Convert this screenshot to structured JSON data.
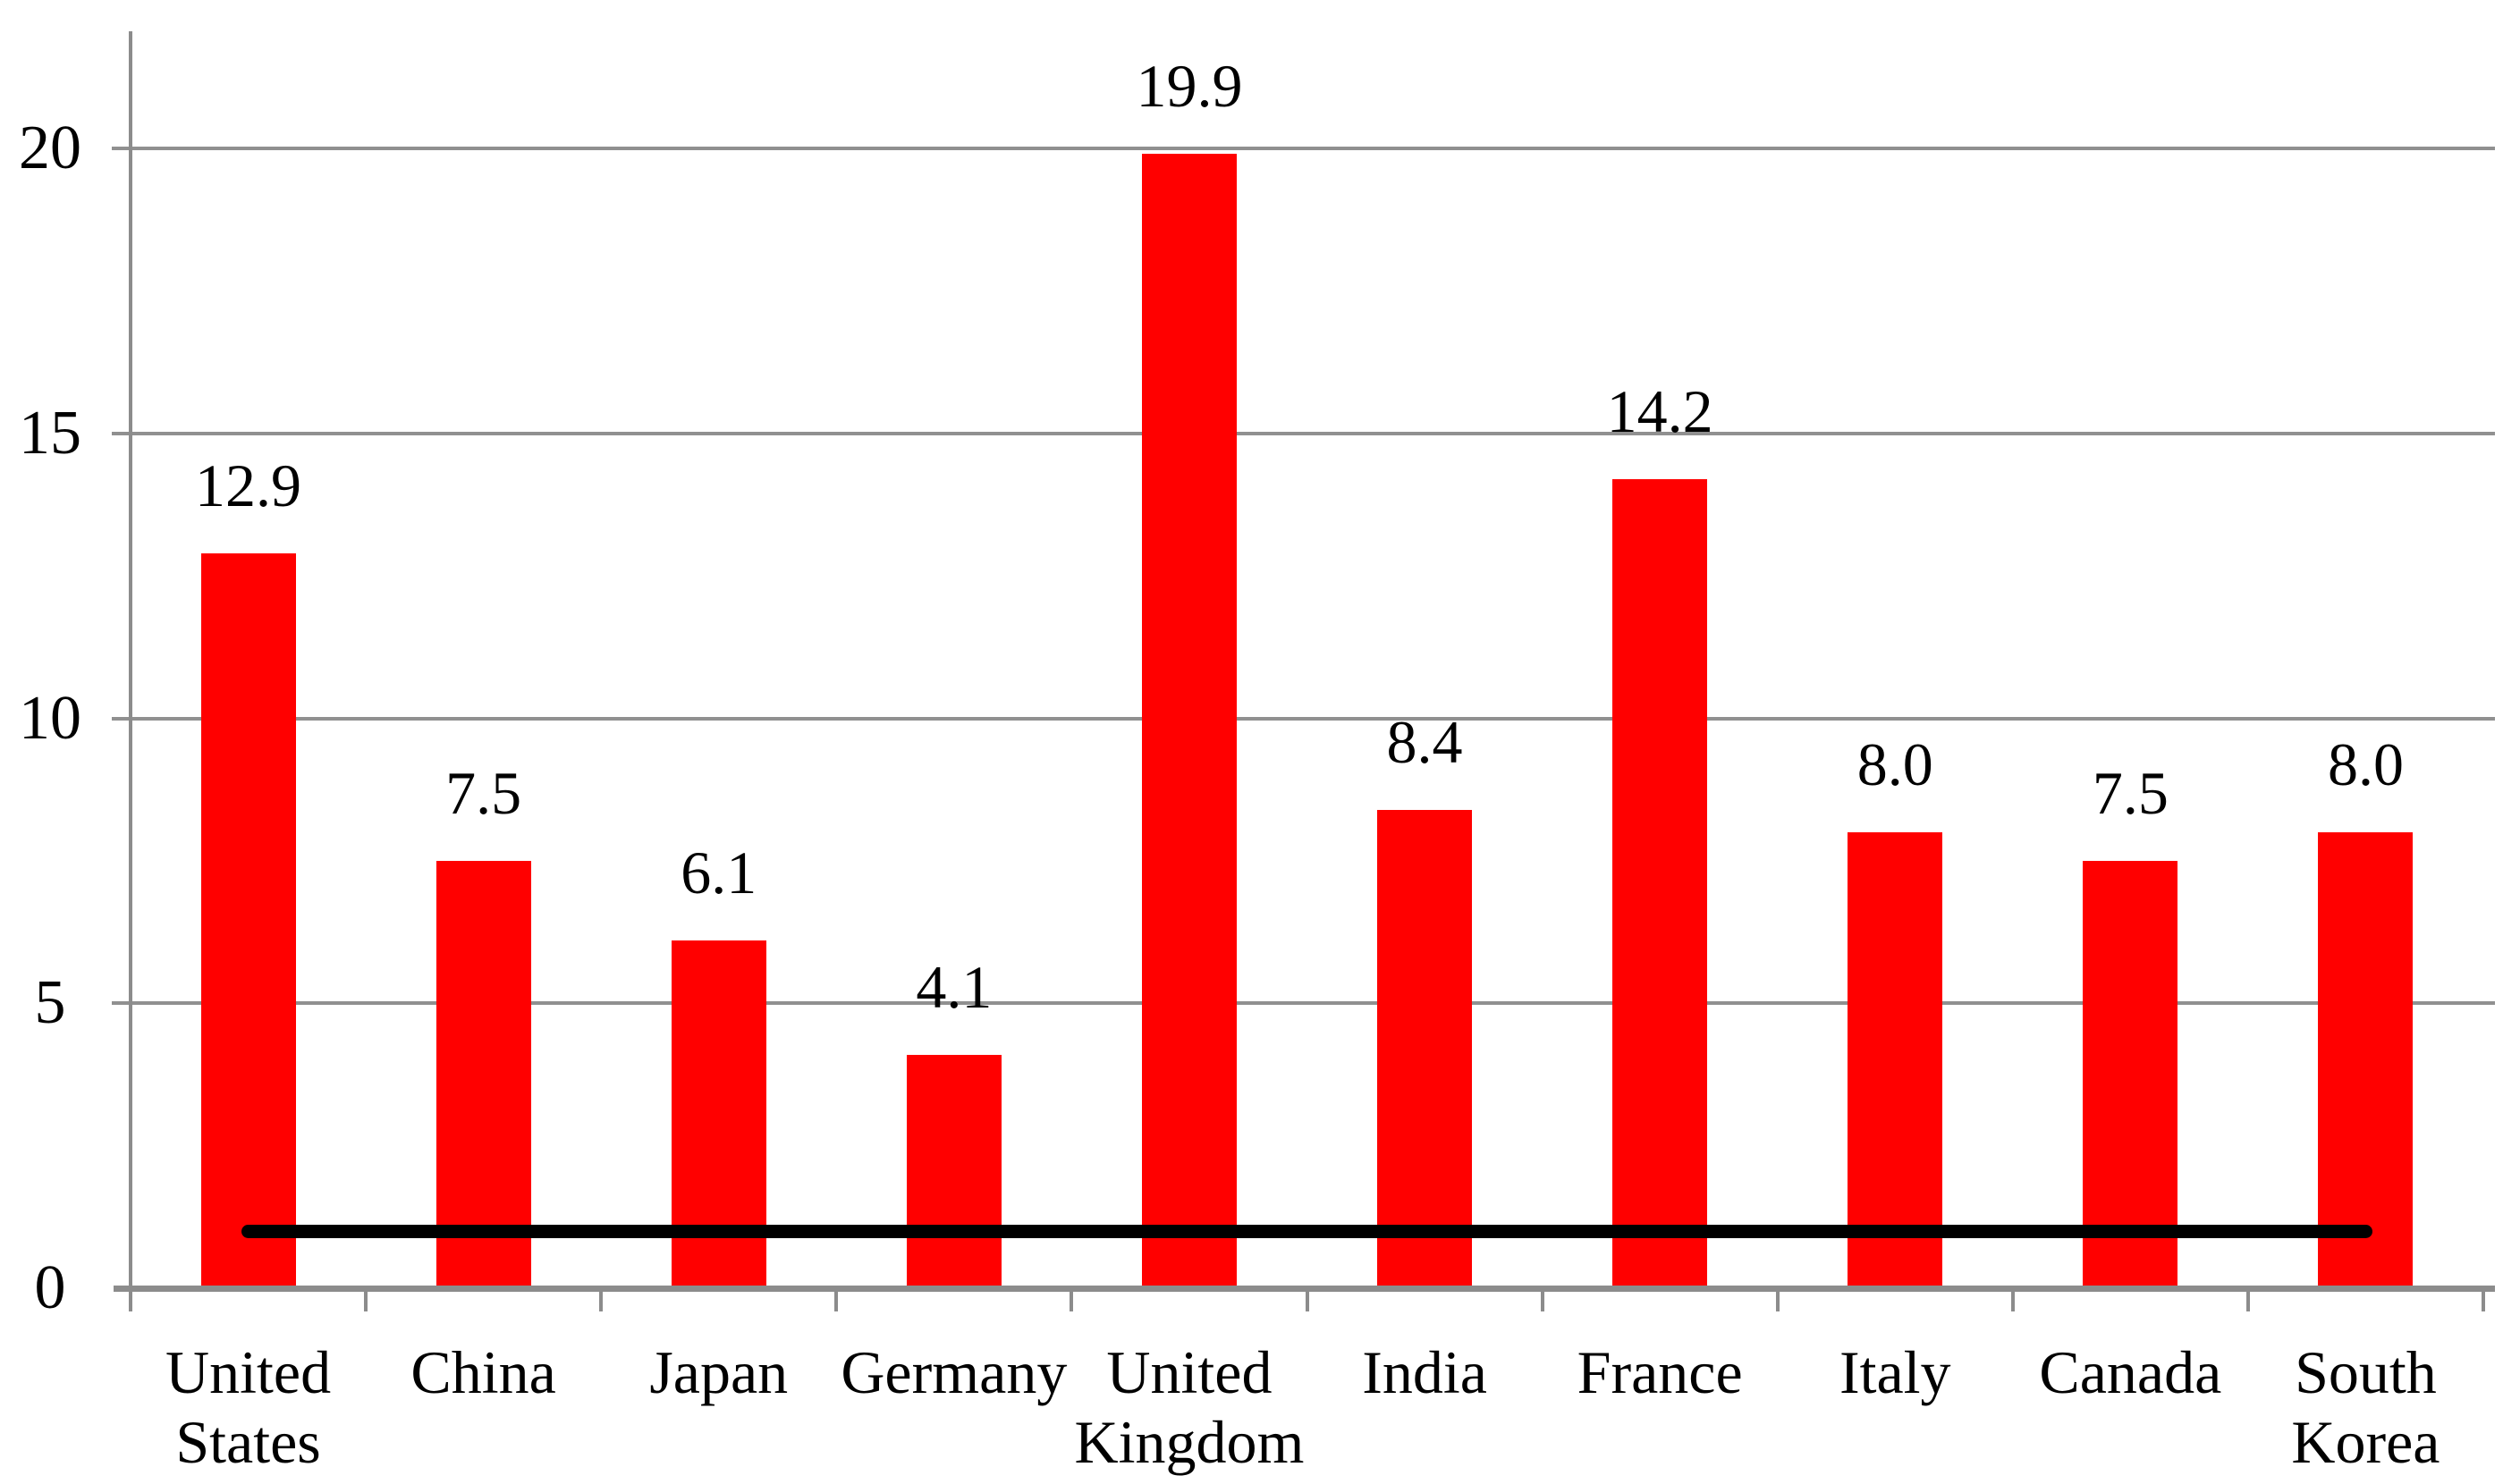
{
  "chart_data": {
    "type": "bar",
    "title": "",
    "xlabel": "",
    "ylabel": "",
    "categories": [
      "United States",
      "China",
      "Japan",
      "Germany",
      "United Kingdom",
      "India",
      "France",
      "Italy",
      "Canada",
      "South Korea"
    ],
    "category_label_lines": [
      [
        "United",
        "States"
      ],
      [
        "China"
      ],
      [
        "Japan"
      ],
      [
        "Germany"
      ],
      [
        "United",
        "Kingdom"
      ],
      [
        "India"
      ],
      [
        "France"
      ],
      [
        "Italy"
      ],
      [
        "Canada"
      ],
      [
        "South",
        "Korea"
      ]
    ],
    "values": [
      12.9,
      7.5,
      6.1,
      4.1,
      19.9,
      8.4,
      14.2,
      8.0,
      7.5,
      8.0
    ],
    "data_labels": [
      "12.9",
      "7.5",
      "6.1",
      "4.1",
      "19.9",
      "8.4",
      "14.2",
      "8.0",
      "7.5",
      "8.0"
    ],
    "y_ticks": [
      0,
      5,
      10,
      15,
      20
    ],
    "y_tick_labels": [
      "0",
      "5",
      "10",
      "15",
      "20"
    ],
    "ylim": [
      0,
      22
    ],
    "grid": "horizontal",
    "legend": "none",
    "bar_color": "#ff0000",
    "gridline_color": "#909090",
    "axis_color": "#8c8c8c",
    "text_color": "#000000",
    "reference_line": {
      "value": 1.0,
      "color": "#000000",
      "from_category": "United States",
      "to_category": "South Korea"
    }
  }
}
